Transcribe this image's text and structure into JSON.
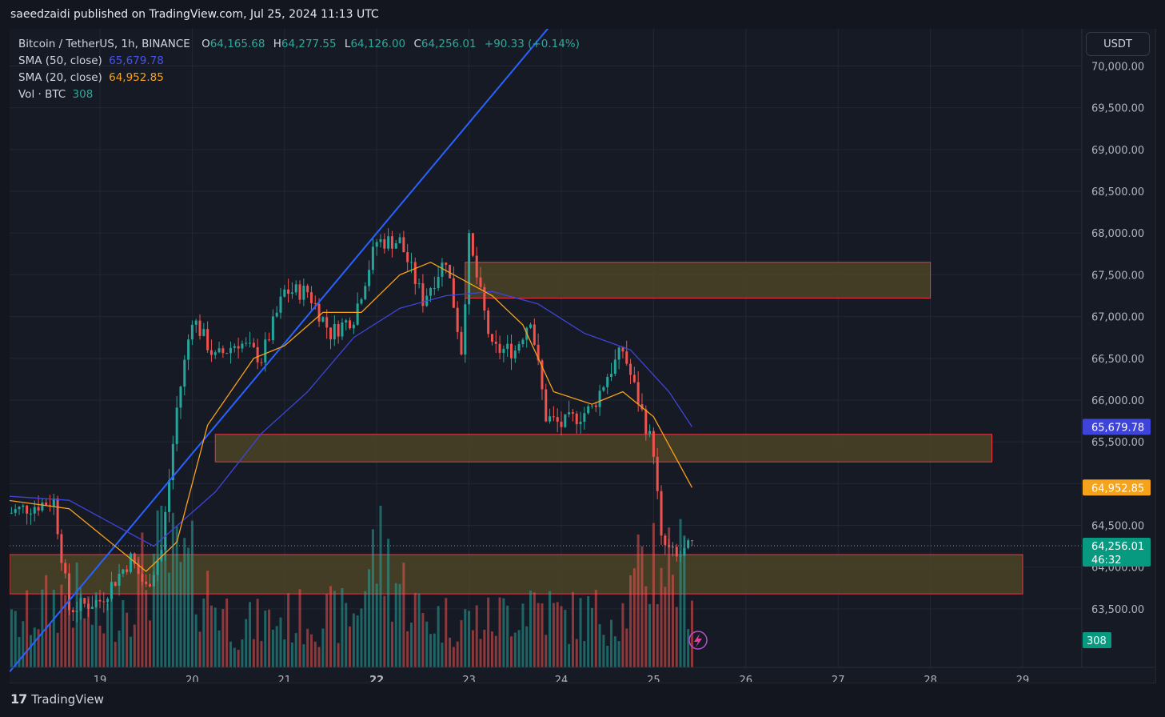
{
  "header": {
    "publisher_line": "saeedzaidi published on TradingView.com, Jul 25, 2024 11:13 UTC"
  },
  "legend": {
    "symbol": "Bitcoin / TetherUS, 1h, BINANCE",
    "o_label": "O",
    "o_value": "64,165.68",
    "h_label": "H",
    "h_value": "64,277.55",
    "l_label": "L",
    "l_value": "64,126.00",
    "c_label": "C",
    "c_value": "64,256.01",
    "change": "+90.33 (+0.14%)",
    "sma50_label": "SMA (50, close)",
    "sma50_value": "65,679.78",
    "sma20_label": "SMA (20, close)",
    "sma20_value": "64,952.85",
    "vol_label": "Vol · BTC",
    "vol_value": "308"
  },
  "currency_button": "USDT",
  "footer": {
    "brand": "TradingView",
    "logo_glyph": "17"
  },
  "colors": {
    "background": "#161a25",
    "up": "#26a69a",
    "down": "#ef5350",
    "sma50": "#3f44d8",
    "sma20": "#f7a21b",
    "trendline": "#2962ff",
    "zone_fill": "#4b4426",
    "zone_border": "#f23645"
  },
  "chart_data": {
    "type": "candlestick",
    "title": "Bitcoin / TetherUS, 1h, BINANCE",
    "x_ticks": [
      "19",
      "20",
      "21",
      "22",
      "23",
      "24",
      "25",
      "26",
      "27",
      "28",
      "29"
    ],
    "y_ticks": [
      "63,500.00",
      "64,000.00",
      "64,500.00",
      "65,000.00",
      "65,500.00",
      "66,000.00",
      "66,500.00",
      "67,000.00",
      "67,500.00",
      "68,000.00",
      "68,500.00",
      "69,000.00",
      "69,500.00",
      "70,000.00"
    ],
    "ylim": [
      62800,
      70100
    ],
    "price_badges": {
      "sma50": "65,679.78",
      "sma20": "64,952.85",
      "last": "64,256.01",
      "countdown": "46:32",
      "volume": "308"
    },
    "zones": [
      {
        "from": "Jul 18",
        "to": "Jul 29",
        "low": 63680,
        "high": 64150
      },
      {
        "from": "Jul 20 06:00",
        "to": "Jul 28 16:00",
        "low": 65260,
        "high": 65590
      },
      {
        "from": "Jul 22 23:00",
        "to": "Jul 28 00:00",
        "low": 67220,
        "high": 67650
      }
    ],
    "trendline": {
      "from": [
        "Jul 18 00:00",
        62720
      ],
      "to": [
        "Jul 22 00:00",
        68000
      ]
    },
    "price_path": [
      [
        "Jul 18 00:00",
        64650
      ],
      [
        "Jul 18 12:00",
        64800
      ],
      [
        "Jul 18 16:00",
        63500
      ],
      [
        "Jul 19 00:00",
        63600
      ],
      [
        "Jul 19 08:00",
        64100
      ],
      [
        "Jul 19 12:00",
        63750
      ],
      [
        "Jul 19 16:00",
        64200
      ],
      [
        "Jul 19 20:00",
        65900
      ],
      [
        "Jul 20 00:00",
        67000
      ],
      [
        "Jul 20 06:00",
        66500
      ],
      [
        "Jul 20 12:00",
        66700
      ],
      [
        "Jul 20 18:00",
        66500
      ],
      [
        "Jul 21 00:00",
        67300
      ],
      [
        "Jul 21 06:00",
        67300
      ],
      [
        "Jul 21 12:00",
        66800
      ],
      [
        "Jul 21 18:00",
        67000
      ],
      [
        "Jul 22 00:00",
        67900
      ],
      [
        "Jul 22 06:00",
        67900
      ],
      [
        "Jul 22 12:00",
        67200
      ],
      [
        "Jul 22 18:00",
        67700
      ],
      [
        "Jul 22 22:00",
        66600
      ],
      [
        "Jul 23 00:00",
        67900
      ],
      [
        "Jul 23 06:00",
        66600
      ],
      [
        "Jul 23 12:00",
        66600
      ],
      [
        "Jul 23 16:00",
        67000
      ],
      [
        "Jul 23 20:00",
        65800
      ],
      [
        "Jul 24 00:00",
        65700
      ],
      [
        "Jul 24 08:00",
        65900
      ],
      [
        "Jul 24 12:00",
        66300
      ],
      [
        "Jul 24 16:00",
        66600
      ],
      [
        "Jul 24 20:00",
        66000
      ],
      [
        "Jul 25 00:00",
        65400
      ],
      [
        "Jul 25 02:00",
        64300
      ],
      [
        "Jul 25 06:00",
        64100
      ],
      [
        "Jul 25 10:00",
        64256
      ]
    ],
    "volume_btc_path": [
      [
        "Jul 18 00:00",
        130
      ],
      [
        "Jul 18 16:00",
        260
      ],
      [
        "Jul 19 00:00",
        150
      ],
      [
        "Jul 19 16:00",
        380
      ],
      [
        "Jul 20 00:00",
        320
      ],
      [
        "Jul 20 12:00",
        140
      ],
      [
        "Jul 21 00:00",
        170
      ],
      [
        "Jul 21 18:00",
        180
      ],
      [
        "Jul 22 00:00",
        410
      ],
      [
        "Jul 22 12:00",
        170
      ],
      [
        "Jul 23 06:00",
        160
      ],
      [
        "Jul 23 16:00",
        240
      ],
      [
        "Jul 24 00:00",
        170
      ],
      [
        "Jul 24 16:00",
        190
      ],
      [
        "Jul 25 00:00",
        400
      ],
      [
        "Jul 25 10:00",
        308
      ]
    ],
    "sma20_path": [
      [
        "Jul 18 00:00",
        64800
      ],
      [
        "Jul 18 16:00",
        64700
      ],
      [
        "Jul 19 12:00",
        63950
      ],
      [
        "Jul 19 20:00",
        64300
      ],
      [
        "Jul 20 04:00",
        65700
      ],
      [
        "Jul 20 16:00",
        66500
      ],
      [
        "Jul 21 00:00",
        66650
      ],
      [
        "Jul 21 10:00",
        67050
      ],
      [
        "Jul 21 20:00",
        67050
      ],
      [
        "Jul 22 06:00",
        67500
      ],
      [
        "Jul 22 14:00",
        67650
      ],
      [
        "Jul 22 22:00",
        67450
      ],
      [
        "Jul 23 06:00",
        67250
      ],
      [
        "Jul 23 14:00",
        66900
      ],
      [
        "Jul 23 22:00",
        66100
      ],
      [
        "Jul 24 08:00",
        65950
      ],
      [
        "Jul 24 16:00",
        66100
      ],
      [
        "Jul 25 00:00",
        65800
      ],
      [
        "Jul 25 10:00",
        64952.85
      ]
    ],
    "sma50_path": [
      [
        "Jul 18 00:00",
        64850
      ],
      [
        "Jul 18 16:00",
        64800
      ],
      [
        "Jul 19 08:00",
        64400
      ],
      [
        "Jul 19 14:00",
        64250
      ],
      [
        "Jul 20 06:00",
        64900
      ],
      [
        "Jul 20 18:00",
        65600
      ],
      [
        "Jul 21 06:00",
        66100
      ],
      [
        "Jul 21 18:00",
        66750
      ],
      [
        "Jul 22 06:00",
        67100
      ],
      [
        "Jul 22 18:00",
        67250
      ],
      [
        "Jul 23 06:00",
        67300
      ],
      [
        "Jul 23 18:00",
        67150
      ],
      [
        "Jul 24 06:00",
        66800
      ],
      [
        "Jul 24 18:00",
        66600
      ],
      [
        "Jul 25 04:00",
        66100
      ],
      [
        "Jul 25 10:00",
        65679.78
      ]
    ]
  }
}
